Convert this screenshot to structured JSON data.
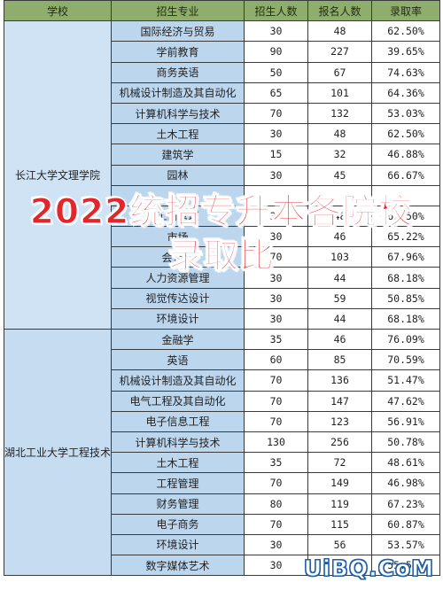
{
  "headers": {
    "school": "学校",
    "major": "招生专业",
    "enroll": "招生人数",
    "apply": "报名人数",
    "rate": "录取率"
  },
  "groups": [
    {
      "school": "长江大学文理学院",
      "rows": [
        {
          "major": "国际经济与贸易",
          "enroll": "30",
          "apply": "48",
          "rate": "62.50%"
        },
        {
          "major": "学前教育",
          "enroll": "90",
          "apply": "227",
          "rate": "39.65%"
        },
        {
          "major": "商务英语",
          "enroll": "50",
          "apply": "67",
          "rate": "74.63%"
        },
        {
          "major": "机械设计制造及其自动化",
          "enroll": "65",
          "apply": "101",
          "rate": "64.36%"
        },
        {
          "major": "计算机科学与技术",
          "enroll": "70",
          "apply": "132",
          "rate": "53.03%"
        },
        {
          "major": "土木工程",
          "enroll": "30",
          "apply": "48",
          "rate": "62.50%"
        },
        {
          "major": "建筑学",
          "enroll": "15",
          "apply": "32",
          "rate": "46.88%"
        },
        {
          "major": "园林",
          "enroll": "30",
          "apply": "45",
          "rate": "66.67%"
        },
        {
          "major": "",
          "enroll": "",
          "apply": "",
          "rate": ""
        },
        {
          "major": "工商管理",
          "enroll": "30",
          "apply": "48",
          "rate": "62.50%"
        },
        {
          "major": "市场",
          "enroll": "30",
          "apply": "46",
          "rate": "65.22%"
        },
        {
          "major": "会计学",
          "enroll": "70",
          "apply": "103",
          "rate": "67.96%"
        },
        {
          "major": "人力资源管理",
          "enroll": "30",
          "apply": "44",
          "rate": "68.18%"
        },
        {
          "major": "视觉传达设计",
          "enroll": "30",
          "apply": "59",
          "rate": "50.85%"
        },
        {
          "major": "环境设计",
          "enroll": "30",
          "apply": "44",
          "rate": "68.18%"
        }
      ]
    },
    {
      "school": "湖北工业大学工程技术学院",
      "rows": [
        {
          "major": "金融学",
          "enroll": "35",
          "apply": "46",
          "rate": "76.09%"
        },
        {
          "major": "英语",
          "enroll": "60",
          "apply": "85",
          "rate": "70.59%"
        },
        {
          "major": "机械设计制造及其自动化",
          "enroll": "70",
          "apply": "136",
          "rate": "51.47%"
        },
        {
          "major": "电气工程及其自动化",
          "enroll": "70",
          "apply": "147",
          "rate": "47.62%"
        },
        {
          "major": "电子信息工程",
          "enroll": "70",
          "apply": "123",
          "rate": "56.91%"
        },
        {
          "major": "计算机科学与技术",
          "enroll": "130",
          "apply": "256",
          "rate": "50.78%"
        },
        {
          "major": "土木工程",
          "enroll": "35",
          "apply": "72",
          "rate": "48.61%"
        },
        {
          "major": "工程管理",
          "enroll": "70",
          "apply": "149",
          "rate": "46.98%"
        },
        {
          "major": "财务管理",
          "enroll": "80",
          "apply": "119",
          "rate": "67.23%"
        },
        {
          "major": "电子商务",
          "enroll": "70",
          "apply": "115",
          "rate": "60.87%"
        },
        {
          "major": "环境设计",
          "enroll": "30",
          "apply": "56",
          "rate": "53.57%"
        },
        {
          "major": "数字媒体艺术",
          "enroll": "30",
          "apply": "54",
          "rate": "55.56%"
        }
      ]
    }
  ],
  "overlay": {
    "line1": "2022统招专升本各院校",
    "line2": "录取比"
  },
  "watermark": "UiBQ.CoM"
}
